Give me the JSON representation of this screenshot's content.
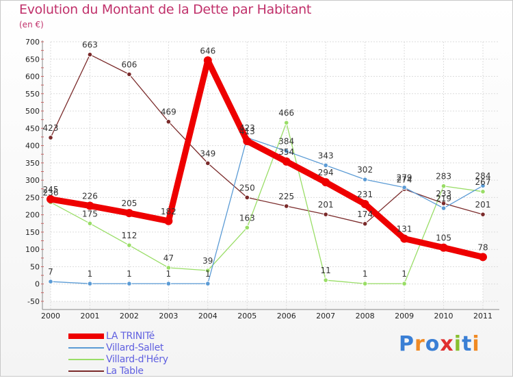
{
  "header": {
    "title": "Evolution du Montant de la Dette par Habitant",
    "unit": "(en €)"
  },
  "logo": {
    "letters": [
      "P",
      "r",
      "o",
      "x",
      "i",
      "t",
      "i"
    ],
    "colors": [
      "#3a7fd5",
      "#f08a24",
      "#3a7fd5",
      "#e03030",
      "#88c030",
      "#3a7fd5",
      "#f08a24"
    ]
  },
  "chart_data": {
    "type": "line",
    "title": "Evolution du Montant de la Dette par Habitant",
    "ylabel": "(en €)",
    "x": [
      "2000",
      "2001",
      "2002",
      "2003",
      "2004",
      "2005",
      "2006",
      "2007",
      "2008",
      "2009",
      "2010",
      "2011"
    ],
    "ylim": [
      -50,
      700
    ],
    "yticks": [
      "-50",
      "0",
      "50",
      "100",
      "150",
      "200",
      "250",
      "300",
      "350",
      "400",
      "450",
      "500",
      "550",
      "600",
      "650",
      "700"
    ],
    "grid": true,
    "legend_position": "bottom-left",
    "series": [
      {
        "name": "LA TRINITé",
        "color": "#ee0000",
        "values": [
          245,
          226,
          205,
          182,
          646,
          413,
          354,
          294,
          231,
          131,
          105,
          78
        ]
      },
      {
        "name": "Villard-Sallet",
        "color": "#5b9bd5",
        "values": [
          7,
          1,
          1,
          1,
          1,
          423,
          384,
          343,
          302,
          279,
          219,
          284
        ]
      },
      {
        "name": "Villard-d'Héry",
        "color": "#99dd66",
        "values": [
          236,
          175,
          112,
          47,
          39,
          163,
          466,
          11,
          1,
          1,
          283,
          267
        ]
      },
      {
        "name": "La Table",
        "color": "#7a2a2a",
        "values": [
          423,
          663,
          606,
          469,
          349,
          250,
          225,
          201,
          174,
          274,
          233,
          201
        ]
      }
    ]
  }
}
